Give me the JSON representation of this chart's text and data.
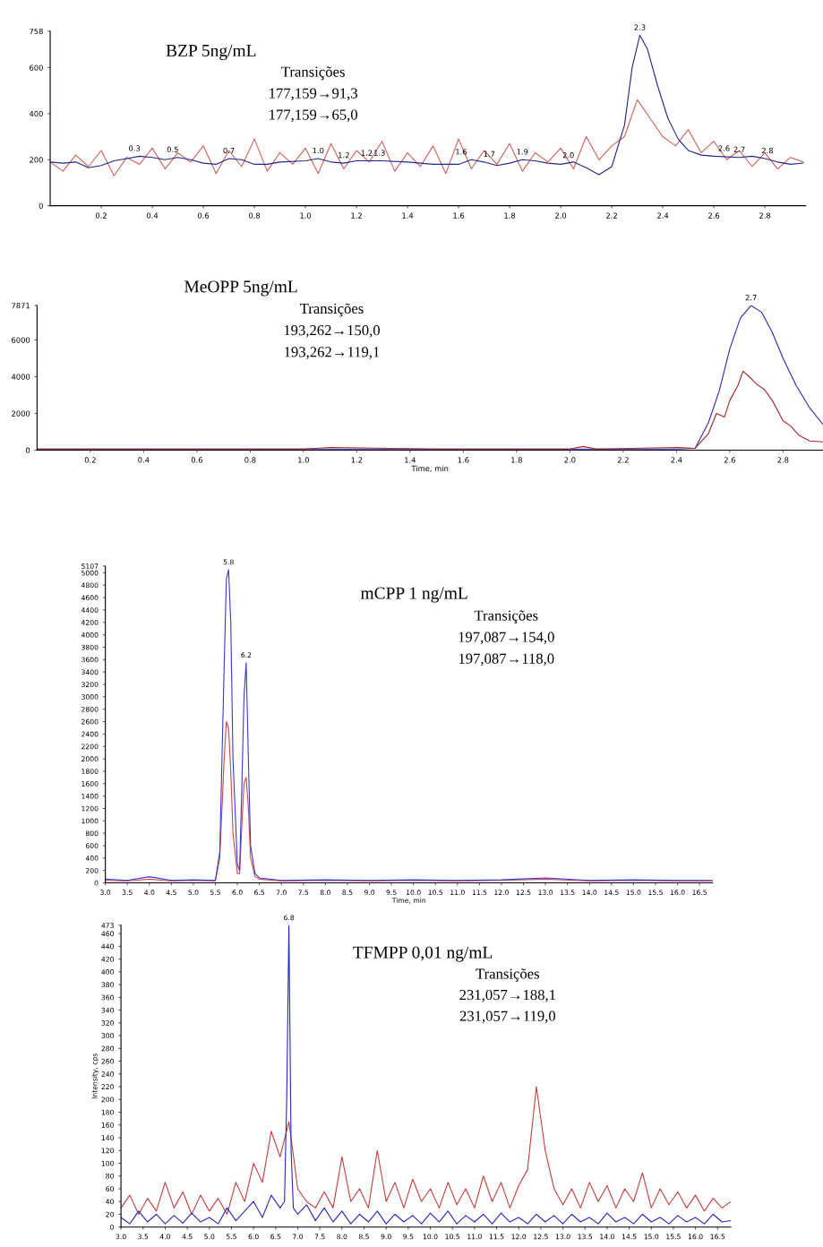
{
  "chart_data": [
    {
      "type": "line",
      "title": "BZP 5ng/mL",
      "xlim": [
        0,
        2.96
      ],
      "ylim": [
        0,
        758
      ],
      "xticks": [
        0.2,
        0.4,
        0.6,
        0.8,
        {
          "value": 1,
          "label": "1.0"
        },
        1.2,
        1.4,
        1.6,
        1.8,
        {
          "value": 2,
          "label": "2.0"
        },
        2.2,
        2.4,
        2.6,
        2.8
      ],
      "yticks": [
        0,
        200,
        400,
        600,
        758
      ],
      "grid": false,
      "legend": false,
      "series": [
        {
          "color": "#d0605a",
          "x": [
            0,
            0.05,
            0.1,
            0.15,
            0.2,
            0.25,
            0.3,
            0.35,
            0.4,
            0.45,
            0.5,
            0.55,
            0.6,
            0.65,
            0.7,
            0.75,
            0.8,
            0.85,
            0.9,
            0.95,
            1.0,
            1.05,
            1.1,
            1.15,
            1.2,
            1.25,
            1.3,
            1.35,
            1.4,
            1.45,
            1.5,
            1.55,
            1.6,
            1.65,
            1.7,
            1.75,
            1.8,
            1.85,
            1.9,
            1.95,
            2.0,
            2.05,
            2.1,
            2.15,
            2.2,
            2.25,
            2.3,
            2.35,
            2.4,
            2.45,
            2.5,
            2.55,
            2.6,
            2.65,
            2.7,
            2.75,
            2.8,
            2.85,
            2.9,
            2.95
          ],
          "values": [
            190,
            150,
            220,
            170,
            240,
            130,
            210,
            180,
            250,
            160,
            230,
            190,
            260,
            140,
            240,
            170,
            290,
            150,
            230,
            180,
            250,
            140,
            270,
            160,
            240,
            190,
            280,
            150,
            230,
            170,
            260,
            140,
            290,
            160,
            240,
            180,
            270,
            150,
            230,
            190,
            250,
            160,
            300,
            200,
            260,
            300,
            460,
            380,
            300,
            260,
            330,
            230,
            280,
            200,
            240,
            170,
            230,
            160,
            210,
            190
          ]
        },
        {
          "color": "#24248a",
          "x": [
            0,
            0.05,
            0.1,
            0.15,
            0.2,
            0.25,
            0.3,
            0.35,
            0.4,
            0.45,
            0.5,
            0.55,
            0.6,
            0.65,
            0.7,
            0.75,
            0.8,
            0.85,
            0.9,
            1.0,
            1.05,
            1.1,
            1.15,
            1.2,
            1.3,
            1.4,
            1.5,
            1.6,
            1.65,
            1.7,
            1.75,
            1.8,
            1.85,
            1.9,
            1.95,
            2.0,
            2.05,
            2.1,
            2.15,
            2.2,
            2.25,
            2.28,
            2.31,
            2.34,
            2.38,
            2.42,
            2.46,
            2.5,
            2.55,
            2.6,
            2.7,
            2.75,
            2.8,
            2.85,
            2.9,
            2.95
          ],
          "values": [
            190,
            185,
            190,
            165,
            175,
            195,
            205,
            215,
            210,
            200,
            210,
            200,
            185,
            180,
            205,
            200,
            180,
            180,
            190,
            195,
            205,
            190,
            185,
            195,
            195,
            190,
            180,
            180,
            200,
            190,
            175,
            185,
            200,
            195,
            185,
            180,
            190,
            165,
            135,
            170,
            350,
            600,
            740,
            680,
            520,
            380,
            290,
            240,
            220,
            215,
            210,
            215,
            205,
            190,
            180,
            185
          ]
        }
      ],
      "annotations": [
        "Transições",
        "177,159→91,3",
        "177,159→65,0",
        {
          "text": "0.3",
          "x": 0.33,
          "y": 215
        },
        {
          "text": "0.5",
          "x": 0.48,
          "y": 210
        },
        {
          "text": "0.7",
          "x": 0.7,
          "y": 205
        },
        {
          "text": "1.0",
          "x": 1.05,
          "y": 205
        },
        {
          "text": "1.2",
          "x": 1.15,
          "y": 185
        },
        {
          "text": "1.2",
          "x": 1.24,
          "y": 195
        },
        {
          "text": "1.3",
          "x": 1.29,
          "y": 195
        },
        {
          "text": "1.6",
          "x": 1.61,
          "y": 200
        },
        {
          "text": "1.7",
          "x": 1.72,
          "y": 190
        },
        {
          "text": "1.9",
          "x": 1.85,
          "y": 200
        },
        {
          "text": "2.0",
          "x": 2.03,
          "y": 185
        },
        {
          "text": "2.3",
          "x": 2.31,
          "y": 740
        },
        {
          "text": "2.6",
          "x": 2.64,
          "y": 215
        },
        {
          "text": "2.7",
          "x": 2.7,
          "y": 210
        },
        {
          "text": "2.8",
          "x": 2.81,
          "y": 205
        }
      ]
    },
    {
      "type": "line",
      "title": "MeOPP 5ng/mL",
      "xlabel": "Time, min",
      "xlim": [
        0,
        2.95
      ],
      "ylim": [
        0,
        7871
      ],
      "xticks": [
        0.2,
        0.4,
        0.6,
        0.8,
        {
          "value": 1,
          "label": "1.0"
        },
        1.2,
        1.4,
        1.6,
        1.8,
        {
          "value": 2,
          "label": "2.0"
        },
        2.2,
        2.4,
        2.6,
        2.8
      ],
      "yticks": [
        0,
        2000,
        4000,
        6000,
        7871
      ],
      "grid": false,
      "legend": false,
      "series": [
        {
          "color": "#2a2ab8",
          "x": [
            0,
            0.5,
            1.0,
            1.5,
            2.0,
            2.4,
            2.47,
            2.52,
            2.56,
            2.6,
            2.64,
            2.68,
            2.72,
            2.76,
            2.8,
            2.85,
            2.9,
            2.95
          ],
          "values": [
            60,
            60,
            60,
            60,
            60,
            60,
            100,
            1500,
            3200,
            5500,
            7200,
            7871,
            7500,
            6400,
            5000,
            3500,
            2300,
            1400
          ]
        },
        {
          "color": "#a02828",
          "x": [
            0,
            0.5,
            1.0,
            1.1,
            1.5,
            2.0,
            2.05,
            2.1,
            2.4,
            2.47,
            2.52,
            2.55,
            2.58,
            2.6,
            2.63,
            2.65,
            2.68,
            2.7,
            2.73,
            2.76,
            2.8,
            2.83,
            2.86,
            2.9,
            2.95
          ],
          "values": [
            60,
            60,
            60,
            150,
            60,
            60,
            200,
            60,
            150,
            100,
            900,
            2000,
            1800,
            2700,
            3500,
            4300,
            3900,
            3600,
            3300,
            2700,
            1600,
            1300,
            800,
            500,
            450
          ]
        }
      ],
      "annotations": [
        "Transições",
        "193,262→150,0",
        "193,262→119,1",
        {
          "text": "2.7",
          "x": 2.68,
          "y": 7871
        }
      ]
    },
    {
      "type": "line",
      "title": "mCPP 1 ng/mL",
      "xlabel": "Time, min",
      "xlim": [
        3,
        16.8
      ],
      "ylim": [
        0,
        5107
      ],
      "xticks": [
        {
          "value": 3,
          "label": "3.0"
        },
        3.5,
        {
          "value": 4,
          "label": "4.0"
        },
        4.5,
        {
          "value": 5,
          "label": "5.0"
        },
        5.5,
        {
          "value": 6,
          "label": "6.0"
        },
        6.5,
        {
          "value": 7,
          "label": "7.0"
        },
        7.5,
        {
          "value": 8,
          "label": "8.0"
        },
        8.5,
        {
          "value": 9,
          "label": "9.0"
        },
        9.5,
        {
          "value": 10,
          "label": "10.0"
        },
        10.5,
        {
          "value": 11,
          "label": "11.0"
        },
        11.5,
        {
          "value": 12,
          "label": "12.0"
        },
        12.5,
        {
          "value": 13,
          "label": "13.0"
        },
        13.5,
        {
          "value": 14,
          "label": "14.0"
        },
        14.5,
        {
          "value": 15,
          "label": "15.0"
        },
        15.5,
        {
          "value": 16,
          "label": "16.0"
        },
        16.5
      ],
      "yticks": [
        0,
        200,
        400,
        600,
        800,
        1000,
        1200,
        1400,
        1600,
        1800,
        2000,
        2200,
        2400,
        2600,
        2800,
        3000,
        3200,
        3400,
        3600,
        3800,
        4000,
        4200,
        4400,
        4600,
        4800,
        5000,
        5107
      ],
      "grid": false,
      "legend": false,
      "series": [
        {
          "color": "#d04848",
          "x": [
            3.0,
            3.5,
            4.0,
            4.5,
            5.0,
            5.5,
            5.6,
            5.7,
            5.75,
            5.8,
            5.85,
            5.9,
            6.0,
            6.05,
            6.1,
            6.15,
            6.2,
            6.25,
            6.3,
            6.4,
            6.5,
            7,
            8,
            9,
            10,
            11,
            12,
            13,
            14,
            15,
            16,
            16.8
          ],
          "values": [
            40,
            30,
            60,
            30,
            40,
            30,
            400,
            2000,
            2600,
            2500,
            1800,
            800,
            150,
            150,
            900,
            1600,
            1700,
            1200,
            400,
            100,
            60,
            30,
            40,
            30,
            40,
            30,
            40,
            60,
            30,
            40,
            30,
            30
          ]
        },
        {
          "color": "#3a3ad0",
          "x": [
            3.0,
            3.5,
            4.0,
            4.5,
            5.0,
            5.5,
            5.6,
            5.7,
            5.75,
            5.8,
            5.85,
            5.9,
            6.0,
            6.05,
            6.1,
            6.15,
            6.2,
            6.25,
            6.3,
            6.4,
            6.5,
            7,
            8,
            9,
            10,
            11,
            12,
            13,
            14,
            15,
            16,
            16.8
          ],
          "values": [
            60,
            40,
            100,
            40,
            50,
            40,
            500,
            3500,
            4900,
            5050,
            4200,
            2000,
            300,
            200,
            1500,
            3000,
            3550,
            2000,
            600,
            150,
            80,
            40,
            50,
            40,
            50,
            40,
            50,
            80,
            40,
            50,
            40,
            40
          ]
        }
      ],
      "annotations": [
        "Transições",
        "197,087→154,0",
        "197,087→118,0",
        {
          "text": "5.8",
          "x": 5.8,
          "y": 5050
        },
        {
          "text": "6.2",
          "x": 6.2,
          "y": 3550
        }
      ]
    },
    {
      "type": "line",
      "title": "TFMPP 0,01 ng/mL",
      "ylabel": "Intensity, cps",
      "xlim": [
        3,
        16.8
      ],
      "ylim": [
        0,
        473
      ],
      "xticks": [
        {
          "value": 3,
          "label": "3.0"
        },
        3.5,
        {
          "value": 4,
          "label": "4.0"
        },
        4.5,
        {
          "value": 5,
          "label": "5.0"
        },
        5.5,
        {
          "value": 6,
          "label": "6.0"
        },
        6.5,
        {
          "value": 7,
          "label": "7.0"
        },
        7.5,
        {
          "value": 8,
          "label": "8.0"
        },
        8.5,
        {
          "value": 9,
          "label": "9.0"
        },
        9.5,
        {
          "value": 10,
          "label": "10.0"
        },
        10.5,
        {
          "value": 11,
          "label": "11.0"
        },
        11.5,
        {
          "value": 12,
          "label": "12.0"
        },
        12.5,
        {
          "value": 13,
          "label": "13.0"
        },
        13.5,
        {
          "value": 14,
          "label": "14.0"
        },
        14.5,
        {
          "value": 15,
          "label": "15.0"
        },
        15.5,
        {
          "value": 16,
          "label": "16.0"
        },
        16.5
      ],
      "yticks": [
        0,
        20,
        40,
        60,
        80,
        100,
        120,
        140,
        160,
        180,
        200,
        220,
        240,
        260,
        280,
        300,
        320,
        340,
        360,
        380,
        400,
        420,
        440,
        460,
        473
      ],
      "grid": false,
      "legend": false,
      "series": [
        {
          "color": "#c83c3c",
          "x": [
            3.0,
            3.2,
            3.4,
            3.6,
            3.8,
            4.0,
            4.2,
            4.4,
            4.6,
            4.8,
            5.0,
            5.2,
            5.4,
            5.6,
            5.8,
            6.0,
            6.2,
            6.4,
            6.6,
            6.8,
            7.0,
            7.2,
            7.4,
            7.6,
            7.8,
            8.0,
            8.2,
            8.4,
            8.6,
            8.8,
            9.0,
            9.2,
            9.4,
            9.6,
            9.8,
            10.0,
            10.2,
            10.4,
            10.6,
            10.8,
            11.0,
            11.2,
            11.4,
            11.6,
            11.8,
            12.0,
            12.2,
            12.4,
            12.6,
            12.8,
            13.0,
            13.2,
            13.4,
            13.6,
            13.8,
            14.0,
            14.2,
            14.4,
            14.6,
            14.8,
            15.0,
            15.2,
            15.4,
            15.6,
            15.8,
            16.0,
            16.2,
            16.4,
            16.6,
            16.8
          ],
          "values": [
            30,
            50,
            20,
            45,
            25,
            70,
            30,
            55,
            20,
            50,
            25,
            45,
            20,
            70,
            40,
            100,
            70,
            150,
            110,
            165,
            60,
            40,
            30,
            55,
            30,
            110,
            40,
            60,
            30,
            120,
            40,
            70,
            30,
            75,
            40,
            60,
            30,
            70,
            35,
            60,
            30,
            80,
            40,
            70,
            30,
            65,
            90,
            220,
            120,
            60,
            35,
            60,
            30,
            70,
            40,
            65,
            30,
            60,
            40,
            85,
            30,
            60,
            35,
            55,
            30,
            50,
            25,
            45,
            30,
            40
          ]
        },
        {
          "color": "#2828c0",
          "x": [
            3.0,
            3.2,
            3.4,
            3.6,
            3.8,
            4.0,
            4.2,
            4.4,
            4.6,
            4.8,
            5.0,
            5.2,
            5.4,
            5.6,
            5.8,
            6.0,
            6.2,
            6.4,
            6.6,
            6.7,
            6.75,
            6.8,
            6.85,
            6.9,
            7.0,
            7.2,
            7.4,
            7.6,
            7.8,
            8.0,
            8.2,
            8.4,
            8.6,
            8.8,
            9.0,
            9.2,
            9.4,
            9.6,
            9.8,
            10.0,
            10.2,
            10.4,
            10.6,
            10.8,
            11.0,
            11.2,
            11.4,
            11.6,
            11.8,
            12.0,
            12.2,
            12.4,
            12.6,
            12.8,
            13.0,
            13.2,
            13.4,
            13.6,
            13.8,
            14.0,
            14.2,
            14.4,
            14.6,
            14.8,
            15.0,
            15.2,
            15.4,
            15.6,
            15.8,
            16.0,
            16.2,
            16.4,
            16.6,
            16.8
          ],
          "values": [
            15,
            5,
            25,
            8,
            20,
            5,
            18,
            6,
            22,
            8,
            15,
            5,
            30,
            10,
            25,
            40,
            15,
            50,
            30,
            40,
            200,
            473,
            120,
            30,
            20,
            35,
            10,
            30,
            8,
            25,
            5,
            20,
            8,
            25,
            5,
            20,
            8,
            18,
            5,
            22,
            8,
            25,
            5,
            18,
            8,
            20,
            5,
            22,
            8,
            15,
            5,
            20,
            8,
            18,
            5,
            20,
            8,
            15,
            5,
            22,
            8,
            15,
            5,
            20,
            8,
            15,
            5,
            18,
            8,
            15,
            5,
            20,
            8,
            10
          ]
        }
      ],
      "annotations": [
        "Transições",
        "231,057→188,1",
        "231,057→119,0",
        {
          "text": "6.8",
          "x": 6.8,
          "y": 473
        }
      ]
    }
  ]
}
